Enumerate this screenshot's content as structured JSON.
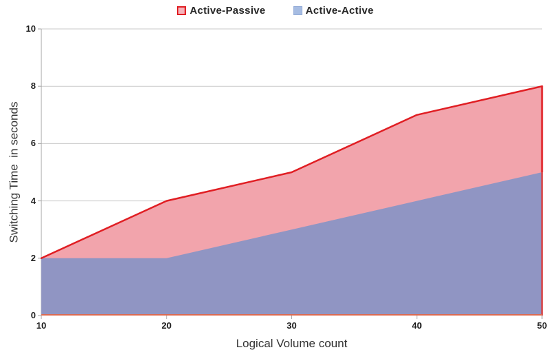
{
  "chart_data": {
    "type": "area",
    "title": "",
    "x": [
      10,
      20,
      30,
      40,
      50
    ],
    "series": [
      {
        "name": "Active-Passive",
        "values": [
          2,
          4,
          5,
          7,
          8
        ],
        "line_color": "#E01E23",
        "fill_color": "#F2A4AC",
        "swatch_fill": "#F5B4BB",
        "swatch_border": "#E01E23"
      },
      {
        "name": "Active-Active",
        "values": [
          2,
          2,
          3,
          4,
          5
        ],
        "line_color": "none",
        "fill_color": "#9095C3",
        "swatch_fill": "#A6BCE2",
        "swatch_border": "#90A9D6"
      }
    ],
    "xlabel": "Logical Volume count",
    "ylabel": "Switching Time  in seconds",
    "xlim": [
      10,
      50
    ],
    "ylim": [
      0,
      10
    ],
    "x_ticks": [
      10,
      20,
      30,
      40,
      50
    ],
    "y_ticks": [
      0,
      2,
      4,
      6,
      8,
      10
    ],
    "grid": true,
    "legend_position": "top-center"
  },
  "colors": {
    "background": "#FFFFFF",
    "gridline": "#C9C9C9",
    "axis": "#A6A6A6",
    "tick_text": "#1E1E1E",
    "title_text": "#333333",
    "legend_text": "#262626",
    "baseline": "#DC6A50",
    "right_edge_lower": "#D93A3B"
  }
}
